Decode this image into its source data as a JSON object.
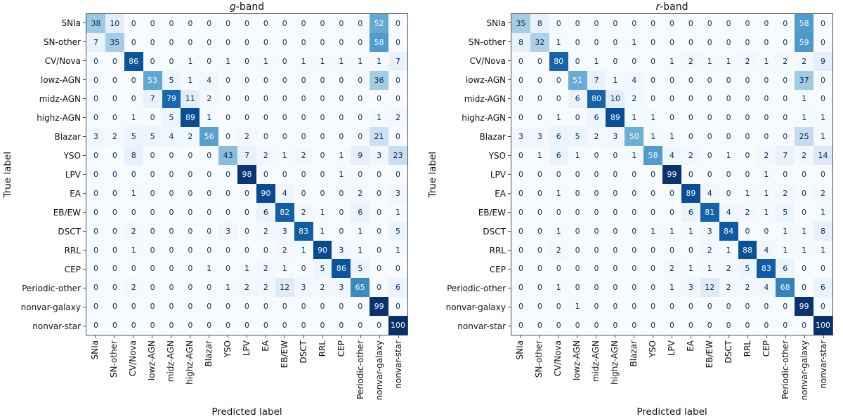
{
  "figure": {
    "text_threshold": 50,
    "colormap": {
      "name": "Blues",
      "stops": [
        "#f7fbff",
        "#deebf7",
        "#c6dbef",
        "#9ecae1",
        "#6baed6",
        "#4292c6",
        "#2171b5",
        "#08519c",
        "#08306b"
      ],
      "text_on_dark_cells": "#f7fbff",
      "text_on_light_cells": "#08306b",
      "spine_color": "#4d4d4d"
    }
  },
  "chart_data": [
    {
      "type": "heatmap",
      "title": "g-band",
      "title_italic": "g",
      "title_rest": "-band",
      "xlabel": "Predicted label",
      "ylabel": "True label",
      "vmin": 0,
      "vmax": 100,
      "legend": "none",
      "grid": "off",
      "categories": [
        "SNIa",
        "SN-other",
        "CV/Nova",
        "lowz-AGN",
        "midz-AGN",
        "highz-AGN",
        "Blazar",
        "YSO",
        "LPV",
        "EA",
        "EB/EW",
        "DSCT",
        "RRL",
        "CEP",
        "Periodic-other",
        "nonvar-galaxy",
        "nonvar-star"
      ],
      "matrix": [
        [
          38,
          10,
          0,
          0,
          0,
          0,
          0,
          0,
          0,
          0,
          0,
          0,
          0,
          0,
          0,
          52,
          0
        ],
        [
          7,
          35,
          0,
          0,
          0,
          0,
          0,
          0,
          0,
          0,
          0,
          0,
          0,
          0,
          0,
          58,
          0
        ],
        [
          0,
          0,
          86,
          0,
          0,
          1,
          0,
          1,
          0,
          1,
          0,
          1,
          1,
          1,
          1,
          1,
          7
        ],
        [
          0,
          0,
          0,
          53,
          5,
          1,
          4,
          0,
          0,
          0,
          0,
          0,
          0,
          0,
          0,
          36,
          0
        ],
        [
          0,
          0,
          0,
          7,
          79,
          11,
          2,
          0,
          0,
          0,
          0,
          0,
          0,
          0,
          0,
          0,
          0
        ],
        [
          0,
          0,
          1,
          0,
          5,
          89,
          1,
          0,
          0,
          0,
          0,
          0,
          0,
          0,
          0,
          1,
          2
        ],
        [
          3,
          2,
          5,
          5,
          4,
          2,
          56,
          0,
          2,
          0,
          0,
          0,
          0,
          0,
          0,
          21,
          0
        ],
        [
          0,
          0,
          8,
          0,
          0,
          0,
          0,
          43,
          7,
          2,
          1,
          2,
          0,
          1,
          9,
          3,
          23
        ],
        [
          0,
          0,
          0,
          0,
          0,
          0,
          0,
          0,
          98,
          0,
          0,
          0,
          0,
          1,
          0,
          0,
          0
        ],
        [
          0,
          0,
          1,
          0,
          0,
          0,
          0,
          0,
          0,
          90,
          4,
          0,
          0,
          0,
          2,
          0,
          3
        ],
        [
          0,
          0,
          0,
          0,
          0,
          0,
          0,
          0,
          0,
          6,
          82,
          2,
          1,
          0,
          6,
          0,
          1
        ],
        [
          0,
          0,
          2,
          0,
          0,
          0,
          0,
          3,
          0,
          2,
          3,
          83,
          1,
          0,
          1,
          0,
          5
        ],
        [
          0,
          0,
          1,
          0,
          0,
          0,
          0,
          0,
          0,
          0,
          2,
          1,
          90,
          3,
          1,
          0,
          1
        ],
        [
          0,
          0,
          0,
          0,
          0,
          0,
          1,
          0,
          1,
          2,
          1,
          0,
          5,
          86,
          5,
          0,
          0
        ],
        [
          0,
          0,
          2,
          0,
          0,
          0,
          0,
          1,
          2,
          2,
          12,
          3,
          2,
          3,
          65,
          0,
          6
        ],
        [
          0,
          0,
          0,
          0,
          0,
          0,
          0,
          0,
          0,
          0,
          0,
          0,
          0,
          0,
          0,
          99,
          0
        ],
        [
          0,
          0,
          0,
          0,
          0,
          0,
          0,
          0,
          0,
          0,
          0,
          0,
          0,
          0,
          0,
          0,
          100
        ]
      ]
    },
    {
      "type": "heatmap",
      "title": "r-band",
      "title_italic": "r",
      "title_rest": "-band",
      "xlabel": "Predicted label",
      "ylabel": "True label",
      "vmin": 0,
      "vmax": 100,
      "legend": "none",
      "grid": "off",
      "categories": [
        "SNIa",
        "SN-other",
        "CV/Nova",
        "lowz-AGN",
        "midz-AGN",
        "highz-AGN",
        "Blazar",
        "YSO",
        "LPV",
        "EA",
        "EB/EW",
        "DSCT",
        "RRL",
        "CEP",
        "Periodic-other",
        "nonvar-galaxy",
        "nonvar-star"
      ],
      "matrix": [
        [
          35,
          8,
          0,
          0,
          0,
          0,
          0,
          0,
          0,
          0,
          0,
          0,
          0,
          0,
          0,
          58,
          0
        ],
        [
          8,
          32,
          1,
          0,
          0,
          0,
          1,
          0,
          0,
          0,
          0,
          0,
          0,
          0,
          0,
          59,
          0
        ],
        [
          0,
          0,
          80,
          0,
          1,
          0,
          0,
          0,
          1,
          2,
          1,
          1,
          2,
          1,
          2,
          2,
          9
        ],
        [
          0,
          0,
          0,
          51,
          7,
          1,
          4,
          0,
          0,
          0,
          0,
          0,
          0,
          0,
          0,
          37,
          0
        ],
        [
          0,
          0,
          0,
          6,
          80,
          10,
          2,
          0,
          0,
          0,
          0,
          0,
          0,
          0,
          0,
          1,
          0
        ],
        [
          0,
          0,
          1,
          0,
          6,
          89,
          1,
          1,
          0,
          0,
          0,
          0,
          0,
          0,
          0,
          1,
          1
        ],
        [
          3,
          3,
          6,
          5,
          2,
          3,
          50,
          1,
          1,
          0,
          0,
          0,
          0,
          0,
          0,
          25,
          1
        ],
        [
          0,
          1,
          6,
          1,
          0,
          0,
          1,
          58,
          4,
          2,
          0,
          1,
          0,
          2,
          7,
          2,
          14
        ],
        [
          0,
          0,
          0,
          0,
          0,
          0,
          0,
          0,
          99,
          0,
          0,
          0,
          0,
          1,
          0,
          0,
          0
        ],
        [
          0,
          0,
          1,
          0,
          0,
          0,
          0,
          0,
          0,
          89,
          4,
          0,
          1,
          1,
          2,
          0,
          2
        ],
        [
          0,
          0,
          0,
          0,
          0,
          0,
          0,
          0,
          0,
          6,
          81,
          4,
          2,
          1,
          5,
          0,
          1
        ],
        [
          0,
          0,
          1,
          0,
          0,
          0,
          0,
          1,
          1,
          1,
          3,
          84,
          0,
          0,
          1,
          1,
          8
        ],
        [
          0,
          0,
          2,
          0,
          0,
          0,
          0,
          0,
          0,
          0,
          2,
          1,
          88,
          4,
          1,
          1,
          1
        ],
        [
          0,
          0,
          0,
          0,
          0,
          0,
          0,
          0,
          2,
          1,
          1,
          2,
          5,
          83,
          6,
          0,
          0
        ],
        [
          0,
          0,
          1,
          0,
          0,
          0,
          0,
          0,
          1,
          3,
          12,
          2,
          2,
          4,
          68,
          0,
          6
        ],
        [
          0,
          0,
          0,
          1,
          0,
          0,
          0,
          0,
          0,
          0,
          0,
          0,
          0,
          0,
          0,
          99,
          0
        ],
        [
          0,
          0,
          0,
          0,
          0,
          0,
          0,
          0,
          0,
          0,
          0,
          0,
          0,
          0,
          0,
          0,
          100
        ]
      ]
    }
  ]
}
